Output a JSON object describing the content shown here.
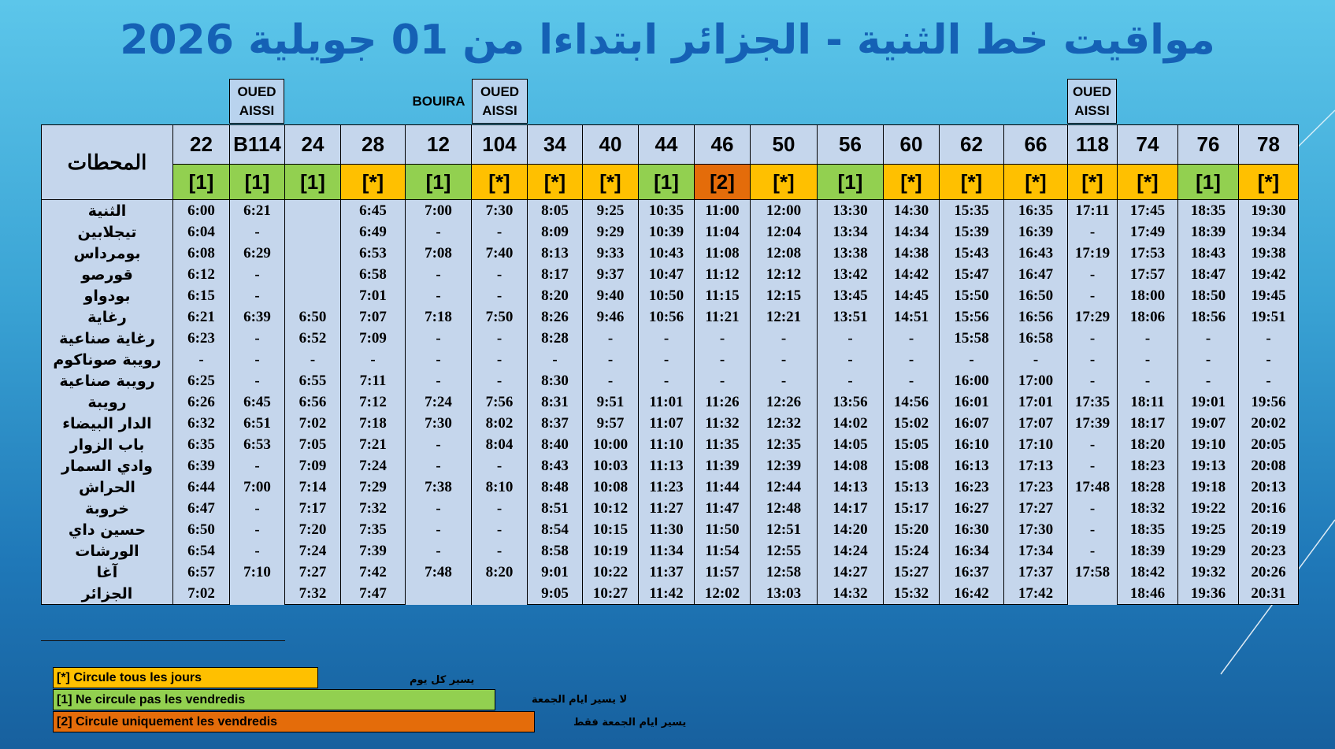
{
  "title": "مواقيت خط الثنية - الجزائر ابتداءا من 01 جويلية 2026",
  "destinations": {
    "oued_aissi": "OUED AISSI",
    "bouira": "BOUIRA"
  },
  "stations_header": "المحطات",
  "trains": [
    {
      "num": "22",
      "code": "[1]",
      "type": "no-fri"
    },
    {
      "num": "B114",
      "code": "[1]",
      "type": "no-fri"
    },
    {
      "num": "24",
      "code": "[1]",
      "type": "no-fri"
    },
    {
      "num": "28",
      "code": "[*]",
      "type": "all"
    },
    {
      "num": "12",
      "code": "[1]",
      "type": "no-fri"
    },
    {
      "num": "104",
      "code": "[*]",
      "type": "all"
    },
    {
      "num": "34",
      "code": "[*]",
      "type": "all"
    },
    {
      "num": "40",
      "code": "[*]",
      "type": "all"
    },
    {
      "num": "44",
      "code": "[1]",
      "type": "no-fri"
    },
    {
      "num": "46",
      "code": "[2]",
      "type": "fri"
    },
    {
      "num": "50",
      "code": "[*]",
      "type": "all"
    },
    {
      "num": "56",
      "code": "[1]",
      "type": "no-fri"
    },
    {
      "num": "60",
      "code": "[*]",
      "type": "all"
    },
    {
      "num": "62",
      "code": "[*]",
      "type": "all"
    },
    {
      "num": "66",
      "code": "[*]",
      "type": "all"
    },
    {
      "num": "118",
      "code": "[*]",
      "type": "all"
    },
    {
      "num": "74",
      "code": "[*]",
      "type": "all"
    },
    {
      "num": "76",
      "code": "[1]",
      "type": "no-fri"
    },
    {
      "num": "78",
      "code": "[*]",
      "type": "all"
    }
  ],
  "stations": [
    {
      "name": "الثنية",
      "times": [
        "6:00",
        "6:21",
        "",
        "6:45",
        "7:00",
        "7:30",
        "8:05",
        "9:25",
        "10:35",
        "11:00",
        "12:00",
        "13:30",
        "14:30",
        "15:35",
        "16:35",
        "17:11",
        "17:45",
        "18:35",
        "19:30"
      ]
    },
    {
      "name": "تيجلابين",
      "times": [
        "6:04",
        "-",
        "",
        "6:49",
        "-",
        "-",
        "8:09",
        "9:29",
        "10:39",
        "11:04",
        "12:04",
        "13:34",
        "14:34",
        "15:39",
        "16:39",
        "-",
        "17:49",
        "18:39",
        "19:34"
      ]
    },
    {
      "name": "بومرداس",
      "times": [
        "6:08",
        "6:29",
        "",
        "6:53",
        "7:08",
        "7:40",
        "8:13",
        "9:33",
        "10:43",
        "11:08",
        "12:08",
        "13:38",
        "14:38",
        "15:43",
        "16:43",
        "17:19",
        "17:53",
        "18:43",
        "19:38"
      ]
    },
    {
      "name": "قورصو",
      "times": [
        "6:12",
        "-",
        "",
        "6:58",
        "-",
        "-",
        "8:17",
        "9:37",
        "10:47",
        "11:12",
        "12:12",
        "13:42",
        "14:42",
        "15:47",
        "16:47",
        "-",
        "17:57",
        "18:47",
        "19:42"
      ]
    },
    {
      "name": "بودواو",
      "times": [
        "6:15",
        "-",
        "",
        "7:01",
        "-",
        "-",
        "8:20",
        "9:40",
        "10:50",
        "11:15",
        "12:15",
        "13:45",
        "14:45",
        "15:50",
        "16:50",
        "-",
        "18:00",
        "18:50",
        "19:45"
      ]
    },
    {
      "name": "رغاية",
      "times": [
        "6:21",
        "6:39",
        "6:50",
        "7:07",
        "7:18",
        "7:50",
        "8:26",
        "9:46",
        "10:56",
        "11:21",
        "12:21",
        "13:51",
        "14:51",
        "15:56",
        "16:56",
        "17:29",
        "18:06",
        "18:56",
        "19:51"
      ]
    },
    {
      "name": "رغاية صناعية",
      "times": [
        "6:23",
        "-",
        "6:52",
        "7:09",
        "-",
        "-",
        "8:28",
        "-",
        "-",
        "-",
        "-",
        "-",
        "-",
        "15:58",
        "16:58",
        "-",
        "-",
        "-",
        "-"
      ]
    },
    {
      "name": "رويبة صوناكوم",
      "times": [
        "-",
        "-",
        "-",
        "-",
        "-",
        "-",
        "-",
        "-",
        "-",
        "-",
        "-",
        "-",
        "-",
        "-",
        "-",
        "-",
        "-",
        "-",
        "-"
      ]
    },
    {
      "name": "رويبة صناعية",
      "times": [
        "6:25",
        "-",
        "6:55",
        "7:11",
        "-",
        "-",
        "8:30",
        "-",
        "-",
        "-",
        "-",
        "-",
        "-",
        "16:00",
        "17:00",
        "-",
        "-",
        "-",
        "-"
      ]
    },
    {
      "name": "رويبة",
      "times": [
        "6:26",
        "6:45",
        "6:56",
        "7:12",
        "7:24",
        "7:56",
        "8:31",
        "9:51",
        "11:01",
        "11:26",
        "12:26",
        "13:56",
        "14:56",
        "16:01",
        "17:01",
        "17:35",
        "18:11",
        "19:01",
        "19:56"
      ]
    },
    {
      "name": "الدار البيضاء",
      "times": [
        "6:32",
        "6:51",
        "7:02",
        "7:18",
        "7:30",
        "8:02",
        "8:37",
        "9:57",
        "11:07",
        "11:32",
        "12:32",
        "14:02",
        "15:02",
        "16:07",
        "17:07",
        "17:39",
        "18:17",
        "19:07",
        "20:02"
      ]
    },
    {
      "name": "باب الزوار",
      "times": [
        "6:35",
        "6:53",
        "7:05",
        "7:21",
        "-",
        "8:04",
        "8:40",
        "10:00",
        "11:10",
        "11:35",
        "12:35",
        "14:05",
        "15:05",
        "16:10",
        "17:10",
        "-",
        "18:20",
        "19:10",
        "20:05"
      ]
    },
    {
      "name": "وادي السمار",
      "times": [
        "6:39",
        "-",
        "7:09",
        "7:24",
        "-",
        "-",
        "8:43",
        "10:03",
        "11:13",
        "11:39",
        "12:39",
        "14:08",
        "15:08",
        "16:13",
        "17:13",
        "-",
        "18:23",
        "19:13",
        "20:08"
      ]
    },
    {
      "name": "الحراش",
      "times": [
        "6:44",
        "7:00",
        "7:14",
        "7:29",
        "7:38",
        "8:10",
        "8:48",
        "10:08",
        "11:23",
        "11:44",
        "12:44",
        "14:13",
        "15:13",
        "16:23",
        "17:23",
        "17:48",
        "18:28",
        "19:18",
        "20:13"
      ]
    },
    {
      "name": "خروبة",
      "times": [
        "6:47",
        "-",
        "7:17",
        "7:32",
        "-",
        "-",
        "8:51",
        "10:12",
        "11:27",
        "11:47",
        "12:48",
        "14:17",
        "15:17",
        "16:27",
        "17:27",
        "-",
        "18:32",
        "19:22",
        "20:16"
      ]
    },
    {
      "name": "حسين داي",
      "times": [
        "6:50",
        "-",
        "7:20",
        "7:35",
        "-",
        "-",
        "8:54",
        "10:15",
        "11:30",
        "11:50",
        "12:51",
        "14:20",
        "15:20",
        "16:30",
        "17:30",
        "-",
        "18:35",
        "19:25",
        "20:19"
      ]
    },
    {
      "name": "الورشات",
      "times": [
        "6:54",
        "-",
        "7:24",
        "7:39",
        "-",
        "-",
        "8:58",
        "10:19",
        "11:34",
        "11:54",
        "12:55",
        "14:24",
        "15:24",
        "16:34",
        "17:34",
        "-",
        "18:39",
        "19:29",
        "20:23"
      ]
    },
    {
      "name": "آغا",
      "times": [
        "6:57",
        "7:10",
        "7:27",
        "7:42",
        "7:48",
        "8:20",
        "9:01",
        "10:22",
        "11:37",
        "11:57",
        "12:58",
        "14:27",
        "15:27",
        "16:37",
        "17:37",
        "17:58",
        "18:42",
        "19:32",
        "20:26"
      ]
    },
    {
      "name": "الجزائر",
      "times": [
        "7:02",
        "",
        "7:32",
        "7:47",
        "",
        "",
        "9:05",
        "10:27",
        "11:42",
        "12:02",
        "13:03",
        "14:32",
        "15:32",
        "16:42",
        "17:42",
        "",
        "18:46",
        "19:36",
        "20:31"
      ]
    }
  ],
  "legend": [
    {
      "code_text": "[*]  Circule tous les jours",
      "arabic": "يسير كل يوم",
      "color": "#ffc000"
    },
    {
      "code_text": "[1]  Ne circule pas les vendredis",
      "arabic": "لا يسير ايام الجمعة",
      "color": "#92d050"
    },
    {
      "code_text": "[2] Circule uniquement  les vendredis",
      "arabic": "يسير ايام الجمعة  فقط",
      "color": "#e46c0a"
    }
  ],
  "colors": {
    "code_all": "#ffc000",
    "code_no_fri": "#92d050",
    "code_fri": "#e46c0a",
    "station_bg": "#ffff00",
    "cell_bg": "#c5d6ec",
    "title": "#1561b5"
  }
}
